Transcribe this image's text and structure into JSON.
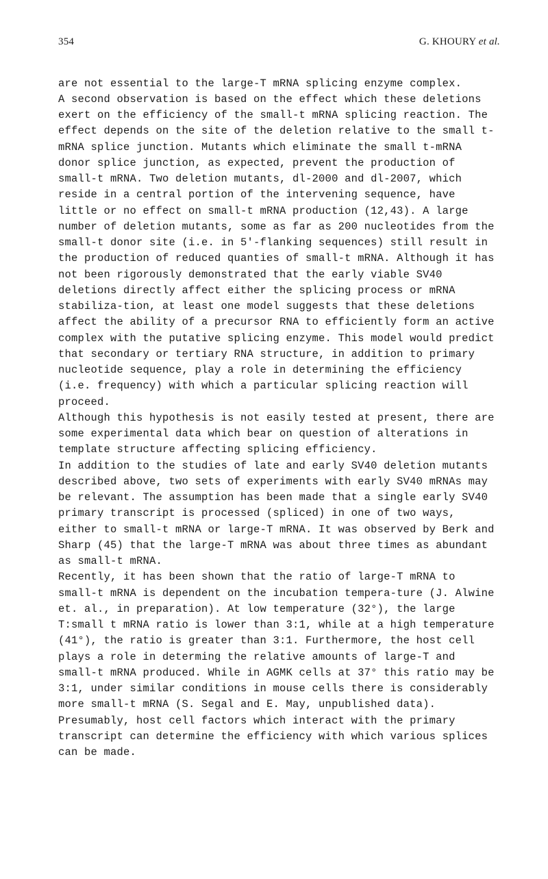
{
  "header": {
    "page_number": "354",
    "author_prefix": "G. KHOURY ",
    "author_suffix": "et al."
  },
  "paragraphs": {
    "p1": "are not essential to the large-T mRNA splicing enzyme complex.",
    "p2": "A second observation is based on the effect which these deletions exert on the efficiency of the small-t mRNA splicing reaction.  The effect depends on the site of the deletion relative to the small t-mRNA splice junction.  Mutants which eliminate the small t-mRNA donor splice junction, as expected, prevent the production of small-t mRNA.  Two deletion mutants, dl-2000 and dl-2007, which reside in a central portion of the intervening sequence, have little or no effect on small-t mRNA production (12,43).  A large number of deletion mutants, some as far as 200 nucleotides from the small-t donor site (i.e. in 5'-flanking sequences) still result in the production of reduced quanties of small-t mRNA.  Although it has not been rigorously demonstrated that the early viable SV40 deletions directly affect either the splicing process or mRNA stabiliza-tion, at least one model suggests that these deletions affect the ability of a precursor RNA to efficiently form an active complex with the putative splicing enzyme.  This model would predict that secondary or tertiary RNA structure, in addition to primary nucleotide sequence, play a role in determining the efficiency (i.e. frequency) with which a particular splicing reaction will proceed.",
    "p3": "Although this hypothesis is not easily tested at present, there are some experimental data which bear on question of alterations in template structure affecting splicing efficiency.",
    "p4": "In addition to the studies of late and early SV40 deletion mutants described above, two sets of experiments with early SV40 mRNAs may be relevant.  The assumption has been made that a single early SV40 primary transcript is processed (spliced) in one of two ways, either to small-t mRNA or large-T mRNA.  It was observed by Berk and Sharp (45) that the large-T mRNA was about three times as abundant as small-t mRNA.",
    "p5": "Recently, it has been shown that the ratio of large-T mRNA to small-t mRNA is dependent on the incubation tempera-ture (J. Alwine et. al., in preparation).  At low temperature (32°),  the large T:small t mRNA ratio is lower than 3:1, while at a high temperature (41°), the ratio is greater than 3:1.  Furthermore, the host cell plays a role in determing the relative amounts of large-T and small-t mRNA produced.  While in AGMK cells at 37° this ratio may be 3:1, under similar conditions in mouse cells there is considerably more small-t mRNA (S. Segal and E. May, unpublished data). Presumably, host cell factors which interact with the primary transcript can determine the efficiency with which various splices can be made."
  }
}
